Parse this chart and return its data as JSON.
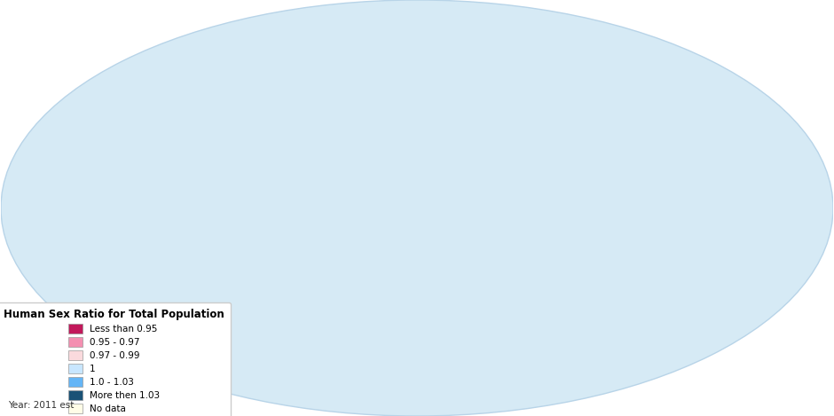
{
  "legend_title": "Human Sex Ratio for Total Population",
  "legend_labels": [
    "Less than 0.95",
    "0.95 - 0.97",
    "0.97 - 0.99",
    "1",
    "1.0 - 1.03",
    "More then 1.03",
    "No data"
  ],
  "legend_colors": [
    "#C2185B",
    "#F48FB1",
    "#FADADD",
    "#C8E6FF",
    "#64B5F6",
    "#1A5276",
    "#FFFDE7"
  ],
  "year_label": "Year: 2011 est",
  "ocean_color": "#D6EAF5",
  "background_color": "#ffffff",
  "graticule_color": "#B8D4E8",
  "edge_color": "#ffffff",
  "edge_width": 0.3,
  "country_colors": {
    "Russia": 0,
    "Ukraine": 0,
    "Belarus": 0,
    "Latvia": 0,
    "Lithuania": 0,
    "Estonia": 0,
    "Moldova": 0,
    "Armenia": 0,
    "Georgia": 0,
    "El Salvador": 0,
    "Honduras": 0,
    "Nicaragua": 0,
    "Portugal": 0,
    "Canada": 1,
    "United States of America": 1,
    "Mexico": 1,
    "Cuba": 1,
    "Jamaica": 1,
    "Venezuela": 1,
    "Colombia": 1,
    "Ecuador": 1,
    "Peru": 1,
    "Bolivia": 1,
    "Paraguay": 1,
    "Chile": 1,
    "Argentina": 1,
    "Uruguay": 1,
    "Brazil": 1,
    "Poland": 1,
    "Czech Republic": 1,
    "Slovakia": 1,
    "Hungary": 1,
    "Romania": 1,
    "Bulgaria": 1,
    "Serbia": 1,
    "Croatia": 1,
    "Bosnia and Herzegovina": 1,
    "Slovenia": 1,
    "Albania": 1,
    "North Macedonia": 1,
    "Montenegro": 1,
    "Austria": 1,
    "Switzerland": 1,
    "Finland": 1,
    "Sweden": 1,
    "Norway": 1,
    "Denmark": 1,
    "Iceland": 1,
    "United Kingdom": 1,
    "Netherlands": 1,
    "Belgium": 1,
    "Germany": 1,
    "France": 1,
    "Spain": 1,
    "Italy": 1,
    "Greece": 1,
    "South Africa": 1,
    "Ethiopia": 1,
    "United Republic of Tanzania": 1,
    "Kenya": 1,
    "Uganda": 1,
    "Nigeria": 1,
    "Ghana": 1,
    "Senegal": 1,
    "Cameroon": 1,
    "Ivory Coast": 1,
    "Burkina Faso": 1,
    "Mali": 1,
    "Niger": 1,
    "Chad": 1,
    "Angola": 1,
    "Democratic Republic of the Congo": 1,
    "Rwanda": 1,
    "Burundi": 1,
    "Mozambique": 1,
    "Zimbabwe": 1,
    "Zambia": 1,
    "Malawi": 1,
    "Madagascar": 1,
    "Morocco": 1,
    "Algeria": 1,
    "Tunisia": 1,
    "Dominican Republic": 1,
    "Somalia": 1,
    "Eritrea": 1,
    "Central African Republic": 1,
    "Republic of Congo": 1,
    "Namibia": 1,
    "Botswana": 1,
    "Lesotho": 1,
    "Swaziland": 1,
    "Luxembourg": 1,
    "Ireland": 1,
    "Turkey": 1,
    "Kosovo": 1,
    "Haiti": 1,
    "Greenland": 1,
    "Guinea-Bissau": 1,
    "Togo": 1,
    "Benin": 1,
    "Liberia": 1,
    "Sierra Leone": 1,
    "Guinea": 1,
    "Gambia": 1,
    "Mauritania": 1,
    "New Zealand": 1,
    "Cyprus": 1,
    "Guatemala": 2,
    "Belize": 2,
    "Panama": 2,
    "Costa Rica": 2,
    "Trinidad and Tobago": 2,
    "Guyana": 2,
    "Suriname": 2,
    "South Korea": 2,
    "Mongolia": 2,
    "Kyrgyzstan": 2,
    "Tajikistan": 2,
    "Turkmenistan": 2,
    "Uzbekistan": 2,
    "Myanmar": 2,
    "Thailand": 2,
    "Laos": 2,
    "Vietnam": 2,
    "Philippines": 2,
    "Indonesia": 2,
    "Timor-Leste": 2,
    "Australia": 2,
    "Japan": 2,
    "Sri Lanka": 2,
    "Cambodia": 2,
    "Kazakhstan": 2,
    "Azerbaijan": 2,
    "Sudan": 2,
    "South Sudan": 2,
    "Egypt": 2,
    "Libya": 2,
    "Western Sahara": 6,
    "Djibouti": 3,
    "Lebanon": 3,
    "Malaysia": 4,
    "Singapore": 4,
    "Brunei": 4,
    "Bangladesh": 4,
    "Iraq": 4,
    "Iran": 4,
    "Syria": 4,
    "Jordan": 4,
    "Israel": 4,
    "Yemen": 4,
    "Papua New Guinea": 4,
    "Fiji": 4,
    "Vanuatu": 4,
    "Gabon": 4,
    "Equatorial Guinea": 4,
    "China": 5,
    "Afghanistan": 5,
    "Pakistan": 5,
    "India": 5,
    "Nepal": 5,
    "Bhutan": 5,
    "North Korea": 5,
    "Saudi Arabia": 5,
    "Oman": 5,
    "United Arab Emirates": 5,
    "Kuwait": 5,
    "Bahrain": 5,
    "Qatar": 5,
    "Solomon Islands": 5,
    "Antarctica": 6,
    "Falkland Islands": 6,
    "French Guiana": 6
  }
}
